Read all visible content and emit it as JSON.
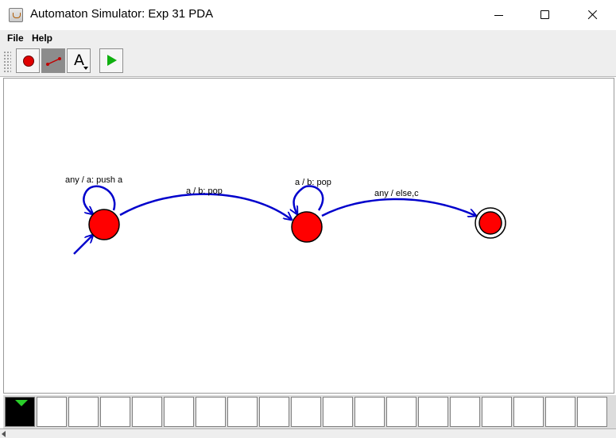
{
  "window": {
    "title": "Automaton Simulator: Exp 31 PDA",
    "icon": "java-cup-icon"
  },
  "menu": {
    "items": [
      {
        "label": "File"
      },
      {
        "label": "Help"
      }
    ]
  },
  "toolbar": {
    "tools": [
      {
        "name": "state-tool",
        "icon": "red-circle-icon"
      },
      {
        "name": "transition-tool",
        "icon": "arrow-line-icon",
        "selected": true
      },
      {
        "name": "text-tool",
        "icon": "letter-a-icon",
        "glyph": "A"
      },
      {
        "name": "run-tool",
        "icon": "green-play-icon"
      }
    ]
  },
  "automaton": {
    "state_color": "#ff0000",
    "transition_color": "#0000cc",
    "states": [
      {
        "id": "q0",
        "initial": true,
        "final": false
      },
      {
        "id": "q1",
        "initial": false,
        "final": false
      },
      {
        "id": "q2",
        "initial": false,
        "final": true
      }
    ],
    "transitions": [
      {
        "from": "q0",
        "to": "q0",
        "label": "any / a: push a"
      },
      {
        "from": "q0",
        "to": "q1",
        "label": "a / b: pop"
      },
      {
        "from": "q1",
        "to": "q1",
        "label": "a / b: pop"
      },
      {
        "from": "q1",
        "to": "q2",
        "label": "any / else,c"
      }
    ]
  },
  "tape": {
    "head_color": "#2ad02a",
    "active_cell": 0,
    "cell_count": 19
  }
}
